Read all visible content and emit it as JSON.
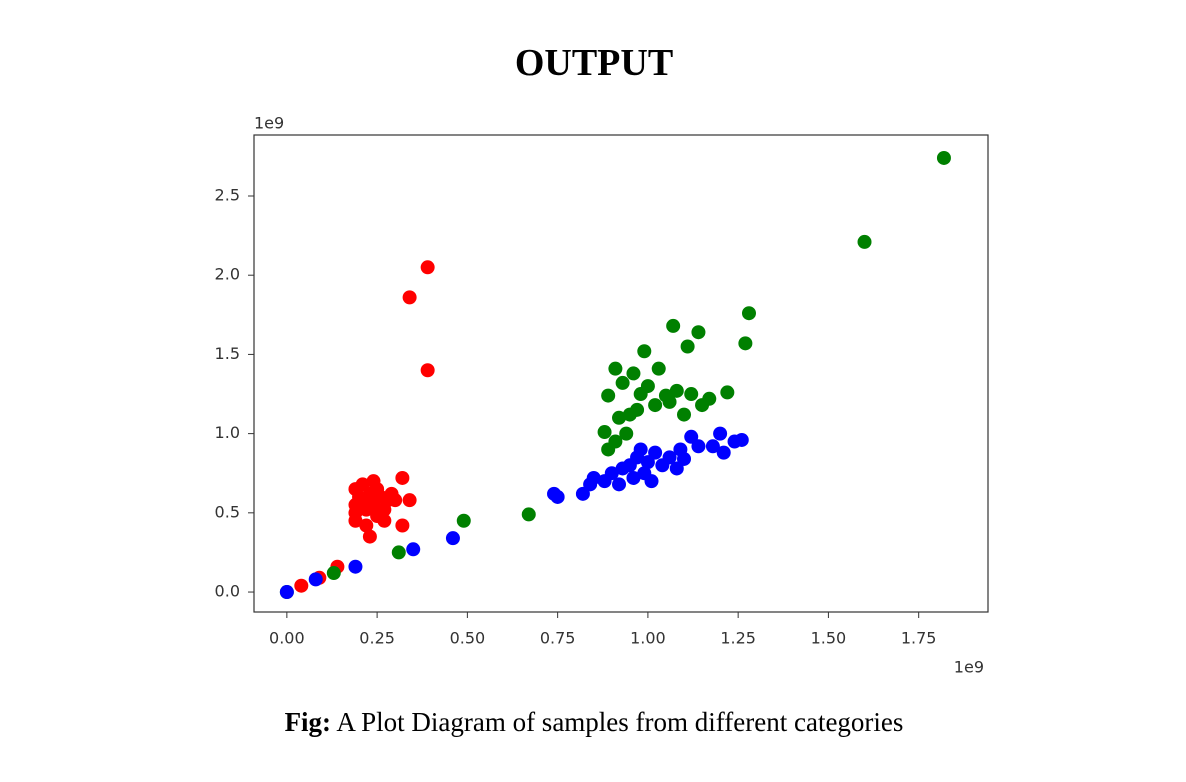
{
  "chart_data": {
    "type": "scatter",
    "title": "OUTPUT",
    "caption_label": "Fig:",
    "caption": "A Plot Diagram of samples from different categories",
    "x_offset_label": "1e9",
    "y_offset_label": "1e9",
    "xlim": [
      -0.091,
      1.942
    ],
    "ylim": [
      -0.126,
      2.885
    ],
    "xticks": [
      {
        "value": 0,
        "label": "0.00"
      },
      0.25,
      {
        "value": 0.5,
        "label": "0.50"
      },
      0.75,
      {
        "value": 1,
        "label": "1.00"
      },
      1.25,
      {
        "value": 1.5,
        "label": "1.50"
      },
      1.75
    ],
    "yticks": [
      {
        "value": 0,
        "label": "0.0"
      },
      0.5,
      {
        "value": 1,
        "label": "1.0"
      },
      1.5,
      {
        "value": 2,
        "label": "2.0"
      },
      2.5
    ],
    "series": [
      {
        "color": "#ff0000",
        "x": [
          0.04,
          0.09,
          0.14,
          0.34,
          0.39,
          0.39,
          0.19,
          0.2,
          0.19,
          0.19,
          0.19,
          0.21,
          0.21,
          0.22,
          0.22,
          0.23,
          0.23,
          0.24,
          0.24,
          0.25,
          0.25,
          0.26,
          0.27,
          0.27,
          0.28,
          0.3,
          0.32,
          0.32,
          0.34,
          0.29
        ],
        "values": [
          0.04,
          0.09,
          0.16,
          1.86,
          2.05,
          1.4,
          0.65,
          0.6,
          0.55,
          0.5,
          0.45,
          0.68,
          0.58,
          0.52,
          0.42,
          0.35,
          0.62,
          0.7,
          0.55,
          0.48,
          0.65,
          0.6,
          0.52,
          0.45,
          0.58,
          0.58,
          0.42,
          0.72,
          0.58,
          0.62
        ]
      },
      {
        "color": "#008000",
        "x": [
          0.0,
          0.13,
          0.31,
          0.49,
          0.67,
          1.82,
          1.6,
          1.28,
          1.27,
          1.07,
          1.14,
          1.11,
          0.99,
          0.91,
          0.93,
          0.96,
          1.03,
          1.0,
          0.98,
          1.05,
          1.08,
          1.12,
          1.17,
          1.22,
          0.89,
          0.92,
          0.95,
          0.97,
          1.02,
          1.1,
          1.06,
          0.88,
          0.91,
          0.94,
          0.89,
          1.15
        ],
        "values": [
          0.0,
          0.12,
          0.25,
          0.45,
          0.49,
          2.74,
          2.21,
          1.76,
          1.57,
          1.68,
          1.64,
          1.55,
          1.52,
          1.41,
          1.32,
          1.38,
          1.41,
          1.3,
          1.25,
          1.24,
          1.27,
          1.25,
          1.22,
          1.26,
          1.24,
          1.1,
          1.12,
          1.15,
          1.18,
          1.12,
          1.2,
          1.01,
          0.95,
          1.0,
          0.9,
          1.18
        ]
      },
      {
        "color": "#0000ff",
        "x": [
          0.0,
          0.08,
          0.19,
          0.35,
          0.46,
          0.74,
          0.75,
          0.82,
          0.84,
          0.85,
          0.88,
          0.9,
          0.92,
          0.93,
          0.95,
          0.96,
          0.97,
          0.98,
          0.99,
          1.0,
          1.01,
          1.02,
          1.04,
          1.06,
          1.08,
          1.09,
          1.1,
          1.12,
          1.14,
          1.18,
          1.2,
          1.21,
          1.24,
          1.26
        ],
        "values": [
          0.0,
          0.08,
          0.16,
          0.27,
          0.34,
          0.62,
          0.6,
          0.62,
          0.68,
          0.72,
          0.7,
          0.75,
          0.68,
          0.78,
          0.8,
          0.72,
          0.85,
          0.9,
          0.75,
          0.82,
          0.7,
          0.88,
          0.8,
          0.85,
          0.78,
          0.9,
          0.84,
          0.98,
          0.92,
          0.92,
          1.0,
          0.88,
          0.95,
          0.96
        ]
      }
    ]
  }
}
